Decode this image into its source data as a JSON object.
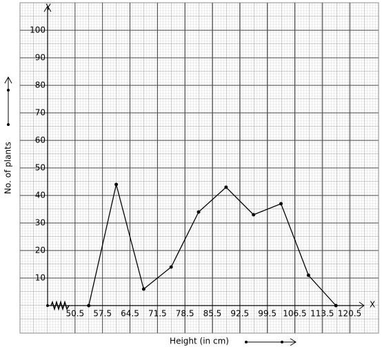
{
  "chart_data": {
    "type": "line",
    "x_label": "Height (in cm)",
    "y_label": "No. of plants",
    "x_axis_name": "X",
    "y_axis_name": "Y",
    "x": [
      54,
      61,
      68,
      75,
      82,
      89,
      96,
      103,
      110,
      117
    ],
    "series": [
      {
        "color": "#000000",
        "values": [
          0,
          44,
          6,
          14,
          34,
          43,
          33,
          37,
          11,
          0
        ]
      }
    ],
    "xlim": [
      43.5,
      124
    ],
    "ylim": [
      0,
      107.5
    ],
    "xticks": [
      50.5,
      57.5,
      64.5,
      71.5,
      78.5,
      85.5,
      92.5,
      99.5,
      106.5,
      113.5,
      120.5
    ],
    "yticks": [
      10,
      20,
      30,
      40,
      50,
      60,
      70,
      80,
      90,
      100
    ],
    "grid": true
  }
}
